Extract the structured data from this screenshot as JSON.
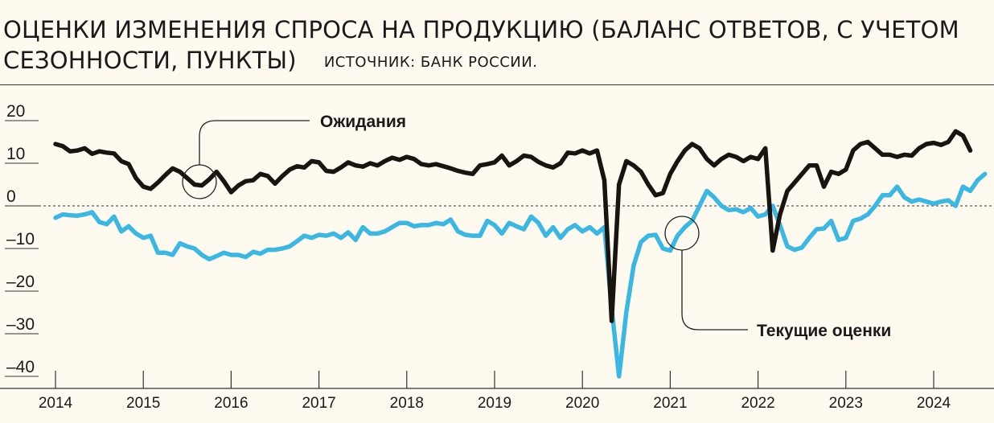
{
  "chart_data": {
    "type": "line",
    "title": "ОЦЕНКИ ИЗМЕНЕНИЯ СПРОСА НА ПРОДУКЦИЮ (БАЛАНС ОТВЕТОВ, С УЧЕТОМ СЕЗОННОСТИ, ПУНКТЫ)",
    "title_line1": "ОЦЕНКИ ИЗМЕНЕНИЯ СПРОСА НА ПРОДУКЦИЮ (БАЛАНС ОТВЕТОВ, С УЧЕТОМ",
    "title_line2": "СЕЗОННОСТИ, ПУНКТЫ)",
    "source": "ИСТОЧНИК: БАНК РОССИИ.",
    "ylim": [
      -40,
      20
    ],
    "y_ticks": [
      20,
      10,
      0,
      -10,
      -20,
      -30,
      -40
    ],
    "x_ticks": [
      "2014",
      "2015",
      "2016",
      "2017",
      "2018",
      "2019",
      "2020",
      "2021",
      "2022",
      "2023",
      "2024"
    ],
    "x_start": "2014-01",
    "zero_line": "dashed",
    "grid": false,
    "legend": "none",
    "series": [
      {
        "name": "Ожидания",
        "color": "#1a1410",
        "values": [
          14.5,
          14.0,
          12.8,
          13.0,
          13.5,
          12.2,
          12.8,
          12.5,
          12.3,
          10.5,
          9.8,
          6.5,
          4.5,
          4.0,
          5.5,
          7.2,
          8.8,
          8.0,
          6.5,
          5.0,
          4.8,
          6.2,
          8.0,
          5.8,
          3.2,
          4.8,
          5.8,
          6.0,
          7.5,
          7.0,
          5.2,
          7.0,
          8.5,
          9.3,
          9.0,
          10.5,
          10.2,
          8.2,
          8.0,
          9.0,
          10.2,
          9.5,
          9.2,
          10.0,
          9.5,
          10.5,
          11.3,
          10.8,
          11.5,
          11.0,
          9.8,
          9.5,
          9.8,
          9.3,
          8.8,
          8.2,
          7.8,
          7.5,
          9.5,
          9.8,
          10.2,
          11.8,
          9.5,
          10.5,
          11.8,
          11.5,
          10.3,
          9.5,
          9.0,
          10.0,
          12.5,
          12.3,
          13.0,
          12.3,
          13.0,
          6.0,
          -27.0,
          5.0,
          10.5,
          9.5,
          8.0,
          5.0,
          2.5,
          3.0,
          7.5,
          10.5,
          13.0,
          14.5,
          13.5,
          11.0,
          9.5,
          11.0,
          12.0,
          11.5,
          10.5,
          11.5,
          11.0,
          13.5,
          -10.5,
          -2.0,
          3.5,
          5.5,
          7.5,
          9.5,
          9.5,
          4.5,
          8.0,
          7.5,
          8.5,
          13.0,
          14.5,
          15.0,
          13.5,
          12.0,
          12.0,
          11.5,
          12.0,
          11.8,
          13.5,
          14.5,
          14.8,
          14.3,
          15.0,
          17.5,
          16.5,
          13.0
        ],
        "note": "Annotated at the circle near mid-2015"
      },
      {
        "name": "Текущие оценки",
        "color": "#3ab8e3",
        "values": [
          -2.8,
          -2.0,
          -2.2,
          -2.3,
          -2.0,
          -1.5,
          -3.8,
          -4.3,
          -2.5,
          -6.0,
          -4.8,
          -6.5,
          -7.5,
          -7.0,
          -11.0,
          -11.0,
          -11.5,
          -8.8,
          -9.5,
          -10.0,
          -11.5,
          -12.5,
          -11.8,
          -11.0,
          -11.5,
          -11.5,
          -12.0,
          -10.8,
          -11.2,
          -10.3,
          -10.3,
          -10.0,
          -9.5,
          -8.3,
          -7.0,
          -7.5,
          -6.8,
          -7.0,
          -6.5,
          -7.5,
          -6.2,
          -8.0,
          -5.0,
          -6.5,
          -6.5,
          -6.0,
          -5.0,
          -4.0,
          -4.0,
          -4.8,
          -4.5,
          -4.5,
          -4.0,
          -4.3,
          -3.2,
          -6.0,
          -6.8,
          -7.0,
          -7.0,
          -3.5,
          -4.5,
          -6.5,
          -4.0,
          -4.8,
          -5.5,
          -2.5,
          -4.0,
          -7.0,
          -5.0,
          -7.5,
          -5.5,
          -4.5,
          -6.0,
          -5.0,
          -6.5,
          -5.0,
          -24.0,
          -40.0,
          -25.0,
          -14.0,
          -8.5,
          -7.0,
          -6.8,
          -10.0,
          -10.5,
          -7.0,
          -5.0,
          -3.5,
          0.0,
          3.5,
          2.0,
          0.0,
          -1.0,
          -0.8,
          -1.5,
          -0.5,
          -2.5,
          -2.0,
          0.0,
          -4.5,
          -9.5,
          -10.3,
          -9.8,
          -7.5,
          -5.5,
          -5.3,
          -3.5,
          -8.0,
          -7.5,
          -3.5,
          -3.0,
          -2.0,
          0.0,
          2.5,
          2.5,
          4.5,
          2.0,
          1.0,
          1.5,
          1.0,
          0.5,
          1.0,
          1.3,
          0.0,
          4.5,
          3.5,
          6.0,
          7.5
        ],
        "note": "Annotated at the circle near early 2021"
      }
    ]
  }
}
